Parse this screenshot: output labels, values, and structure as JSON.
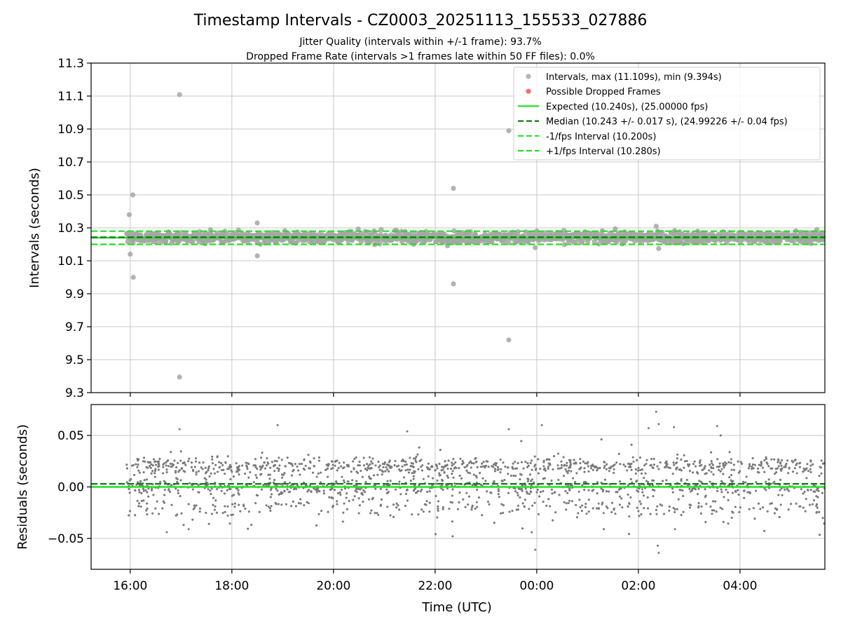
{
  "chart_data": {
    "type": "scatter",
    "title": "Timestamp Intervals - CZ0003_20251113_155533_027886",
    "subtitle_lines": [
      "Jitter Quality (intervals within +/-1 frame): 93.7%",
      "Dropped Frame Rate (intervals >1 frames late within 50 FF files): 0.0%"
    ],
    "xlabel": "Time (UTC)",
    "x_tick_labels": [
      "16:00",
      "18:00",
      "20:00",
      "22:00",
      "00:00",
      "02:00",
      "04:00"
    ],
    "x_ticks_hours": [
      16,
      18,
      20,
      22,
      24,
      26,
      28
    ],
    "xlim_hours": [
      15.23,
      29.67
    ],
    "data_start_hours": 15.93,
    "data_end_hours": 29.67,
    "colors": {
      "intervals": "#a6a6a6",
      "dropped": "#ff5a5a",
      "expected": "#22e022",
      "median": "#0f7a0f",
      "fps_band": "#22e022",
      "residuals": "#7a7a7a",
      "grid": "#c8c8c8"
    },
    "panels": [
      {
        "id": "intervals",
        "ylabel": "Intervals (seconds)",
        "ylim": [
          9.3,
          11.3
        ],
        "y_ticks": [
          9.3,
          9.5,
          9.7,
          9.9,
          10.1,
          10.3,
          10.5,
          10.7,
          10.9,
          11.1,
          11.3
        ],
        "y_tick_labels": [
          "9.3",
          "9.5",
          "9.7",
          "9.9",
          "10.1",
          "10.3",
          "10.5",
          "10.7",
          "10.9",
          "11.1",
          "11.3"
        ],
        "expected": 10.24,
        "median": 10.243,
        "minus_fps": 10.2,
        "plus_fps": 10.28,
        "outliers": [
          {
            "t": 15.98,
            "v": 10.38
          },
          {
            "t": 16.0,
            "v": 10.14
          },
          {
            "t": 16.05,
            "v": 10.5
          },
          {
            "t": 16.06,
            "v": 10.0
          },
          {
            "t": 16.97,
            "v": 11.109
          },
          {
            "t": 16.97,
            "v": 9.394
          },
          {
            "t": 18.5,
            "v": 10.33
          },
          {
            "t": 18.5,
            "v": 10.13
          },
          {
            "t": 22.36,
            "v": 10.54
          },
          {
            "t": 22.36,
            "v": 9.96
          },
          {
            "t": 23.45,
            "v": 10.89
          },
          {
            "t": 23.45,
            "v": 9.62
          },
          {
            "t": 23.97,
            "v": 10.18
          },
          {
            "t": 26.35,
            "v": 10.31
          },
          {
            "t": 26.4,
            "v": 10.175
          }
        ],
        "legend": {
          "position": "upper right",
          "entries": [
            {
              "kind": "point",
              "color_key": "intervals",
              "label": "Intervals, max (11.109s), min (9.394s)"
            },
            {
              "kind": "point",
              "color_key": "dropped",
              "label": "Possible Dropped Frames"
            },
            {
              "kind": "solid",
              "color_key": "expected",
              "label": "Expected (10.240s), (25.00000 fps)"
            },
            {
              "kind": "dashed",
              "color_key": "median",
              "label": "Median (10.243 +/- 0.017 s), (24.99226 +/- 0.04 fps)"
            },
            {
              "kind": "dashed",
              "color_key": "fps_band",
              "label": "-1/fps Interval (10.200s)"
            },
            {
              "kind": "dashed",
              "color_key": "fps_band",
              "label": "+1/fps Interval (10.280s)"
            }
          ]
        }
      },
      {
        "id": "residuals",
        "ylabel": "Residuals (seconds)",
        "ylim": [
          -0.08,
          0.08
        ],
        "y_ticks": [
          -0.05,
          0.0,
          0.05
        ],
        "y_tick_labels": [
          "−0.05",
          "0.00",
          "0.05"
        ],
        "expected": 0.0,
        "median": 0.003,
        "outliers": [
          {
            "t": 16.97,
            "v": 0.056
          },
          {
            "t": 16.72,
            "v": -0.044
          },
          {
            "t": 17.15,
            "v": -0.041
          },
          {
            "t": 18.9,
            "v": 0.06
          },
          {
            "t": 21.45,
            "v": 0.054
          },
          {
            "t": 23.45,
            "v": 0.056
          },
          {
            "t": 23.9,
            "v": -0.044
          },
          {
            "t": 23.97,
            "v": -0.061
          },
          {
            "t": 24.1,
            "v": 0.06
          },
          {
            "t": 26.2,
            "v": 0.057
          },
          {
            "t": 26.35,
            "v": 0.073
          },
          {
            "t": 26.38,
            "v": -0.057
          },
          {
            "t": 26.4,
            "v": -0.064
          },
          {
            "t": 26.4,
            "v": 0.061
          },
          {
            "t": 26.7,
            "v": 0.058
          },
          {
            "t": 26.72,
            "v": -0.041
          },
          {
            "t": 27.55,
            "v": 0.059
          }
        ],
        "clusters": [
          0.02,
          0.0,
          -0.02
        ],
        "approx_points": 3600
      }
    ]
  }
}
